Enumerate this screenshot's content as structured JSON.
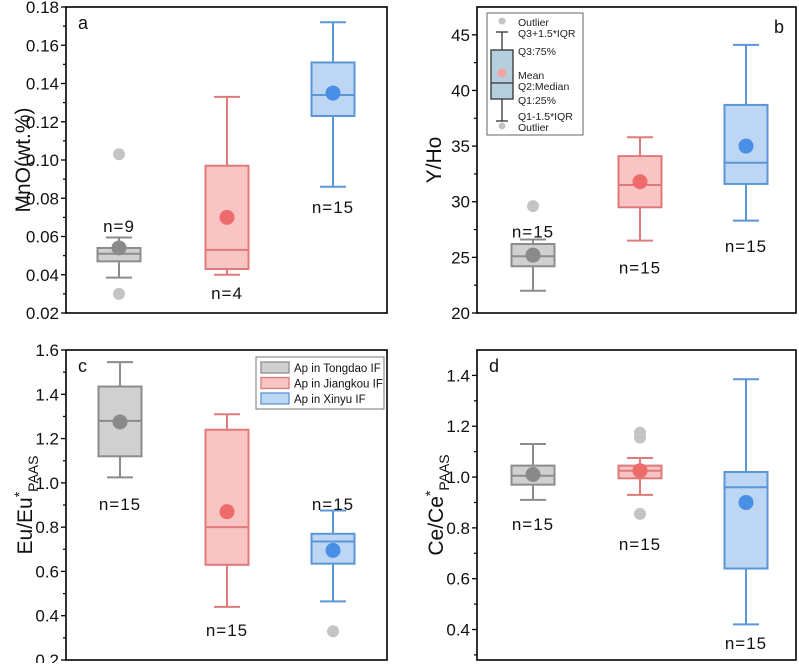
{
  "colors": {
    "gray": {
      "stroke": "#8c8c8c",
      "fill": "#d0d0d0",
      "mean": "#8a8a8a"
    },
    "red": {
      "stroke": "#e07a7a",
      "fill": "#f8c4c4",
      "mean": "#ee6b6b"
    },
    "blue": {
      "stroke": "#5b96d6",
      "fill": "#bcd6f4",
      "mean": "#4a8fe6"
    },
    "outlier": "#c4c4c4"
  },
  "chart_data": [
    {
      "type": "box",
      "panel_label": "a",
      "ylabel": "MnO(wt.%)",
      "ylim": [
        0.02,
        0.18
      ],
      "yticks": [
        "0.02",
        "0.04",
        "0.06",
        "0.08",
        "0.10",
        "0.12",
        "0.14",
        "0.16",
        "0.18"
      ],
      "ytick_values": [
        0.02,
        0.04,
        0.06,
        0.08,
        0.1,
        0.12,
        0.14,
        0.16,
        0.18
      ],
      "groups": [
        {
          "name": "Ap in Tongdao IF",
          "color": "gray",
          "whisker_low": 0.0385,
          "q1": 0.047,
          "median": 0.051,
          "q3": 0.054,
          "whisker_high": 0.0595,
          "mean": 0.054,
          "outliers": [
            0.103,
            0.03
          ],
          "n_label": "n=9",
          "n_label_y": 0.066
        },
        {
          "name": "Ap in Jiangkou IF",
          "color": "red",
          "whisker_low": 0.04,
          "q1": 0.043,
          "median": 0.053,
          "q3": 0.097,
          "whisker_high": 0.133,
          "mean": 0.07,
          "outliers": [],
          "n_label": "n=4",
          "n_label_y": 0.031
        },
        {
          "name": "Ap in Xinyu IF",
          "color": "blue",
          "whisker_low": 0.086,
          "q1": 0.123,
          "median": 0.134,
          "q3": 0.151,
          "whisker_high": 0.172,
          "mean": 0.135,
          "outliers": [],
          "n_label": "n=15",
          "n_label_y": 0.076
        }
      ]
    },
    {
      "type": "box",
      "panel_label": "b",
      "ylabel": "Y/Ho",
      "ylim": [
        20,
        47.5
      ],
      "yticks": [
        "20",
        "25",
        "30",
        "35",
        "40",
        "45"
      ],
      "ytick_values": [
        20,
        25,
        30,
        35,
        40,
        45
      ],
      "groups": [
        {
          "name": "Ap in Tongdao IF",
          "color": "gray",
          "whisker_low": 22.0,
          "q1": 24.2,
          "median": 25.1,
          "q3": 26.2,
          "whisker_high": 26.6,
          "mean": 25.2,
          "outliers": [
            29.6
          ],
          "n_label": "n=15",
          "n_label_y": 27.4
        },
        {
          "name": "Ap in Jiangkou IF",
          "color": "red",
          "whisker_low": 26.5,
          "q1": 29.5,
          "median": 31.5,
          "q3": 34.1,
          "whisker_high": 35.8,
          "mean": 31.8,
          "outliers": [],
          "n_label": "n=15",
          "n_label_y": 24.2
        },
        {
          "name": "Ap in Xinyu IF",
          "color": "blue",
          "whisker_low": 28.3,
          "q1": 31.6,
          "median": 33.5,
          "q3": 38.7,
          "whisker_high": 44.1,
          "mean": 35.0,
          "outliers": [],
          "n_label": "n=15",
          "n_label_y": 26.1
        }
      ],
      "box_key": {
        "labels": [
          "Outlier",
          "Q3+1.5*IQR",
          "Q3:75%",
          "Mean",
          "Q2:Median",
          "Q1:25%",
          "Q1-1.5*IQR",
          "Outlier"
        ]
      }
    },
    {
      "type": "box",
      "panel_label": "c",
      "ylabel_main": "Eu/Eu",
      "ylabel_sup": "*",
      "ylabel_sub": "PAAS",
      "ylim": [
        0.2,
        1.6
      ],
      "yticks": [
        "0.2",
        "0.4",
        "0.6",
        "0.8",
        "1.0",
        "1.2",
        "1.4",
        "1.6"
      ],
      "ytick_values": [
        0.2,
        0.4,
        0.6,
        0.8,
        1.0,
        1.2,
        1.4,
        1.6
      ],
      "groups": [
        {
          "name": "Ap in Tongdao IF",
          "color": "gray",
          "whisker_low": 1.025,
          "q1": 1.12,
          "median": 1.28,
          "q3": 1.435,
          "whisker_high": 1.545,
          "mean": 1.275,
          "outliers": [],
          "n_label": "n=15",
          "n_label_y": 0.91
        },
        {
          "name": "Ap in Jiangkou IF",
          "color": "red",
          "whisker_low": 0.44,
          "q1": 0.63,
          "median": 0.8,
          "q3": 1.24,
          "whisker_high": 1.31,
          "mean": 0.87,
          "outliers": [],
          "n_label": "n=15",
          "n_label_y": 0.34
        },
        {
          "name": "Ap in Xinyu IF",
          "color": "blue",
          "whisker_low": 0.465,
          "q1": 0.635,
          "median": 0.735,
          "q3": 0.77,
          "whisker_high": 0.875,
          "mean": 0.695,
          "outliers": [
            0.33
          ],
          "n_label": "n=15",
          "n_label_y": 0.91
        }
      ],
      "legend": {
        "position": "top-right",
        "items": [
          {
            "label": "Ap in Tongdao IF",
            "color": "gray"
          },
          {
            "label": "Ap in Jiangkou IF",
            "color": "red"
          },
          {
            "label": "Ap in Xinyu IF",
            "color": "blue"
          }
        ]
      }
    },
    {
      "type": "box",
      "panel_label": "d",
      "ylabel_main": "Ce/Ce",
      "ylabel_sup": "*",
      "ylabel_sub": "PAAS",
      "ylim": [
        0.28,
        1.5
      ],
      "yticks": [
        "0.4",
        "0.6",
        "0.8",
        "1.0",
        "1.2",
        "1.4"
      ],
      "ytick_values": [
        0.4,
        0.6,
        0.8,
        1.0,
        1.2,
        1.4
      ],
      "groups": [
        {
          "name": "Ap in Tongdao IF",
          "color": "gray",
          "whisker_low": 0.91,
          "q1": 0.97,
          "median": 1.005,
          "q3": 1.045,
          "whisker_high": 1.13,
          "mean": 1.01,
          "outliers": [],
          "n_label": "n=15",
          "n_label_y": 0.82
        },
        {
          "name": "Ap in Jiangkou IF",
          "color": "red",
          "whisker_low": 0.93,
          "q1": 0.995,
          "median": 1.025,
          "q3": 1.045,
          "whisker_high": 1.075,
          "mean": 1.025,
          "outliers": [
            1.155,
            1.175,
            0.855
          ],
          "n_label": "n=15",
          "n_label_y": 0.74
        },
        {
          "name": "Ap in Xinyu IF",
          "color": "blue",
          "whisker_low": 0.42,
          "q1": 0.64,
          "median": 0.96,
          "q3": 1.02,
          "whisker_high": 1.385,
          "mean": 0.9,
          "outliers": [],
          "n_label": "n=15",
          "n_label_y": 0.35
        }
      ]
    }
  ]
}
